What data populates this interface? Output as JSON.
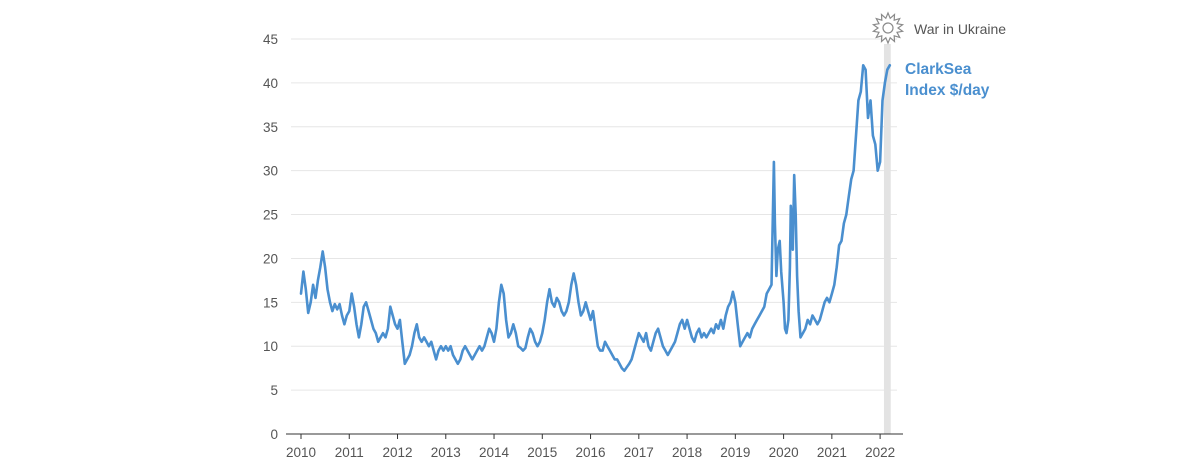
{
  "chart_data": {
    "type": "line",
    "title": "",
    "xlabel": "",
    "ylabel": "",
    "ylim": [
      0,
      45
    ],
    "yticks": [
      0,
      5,
      10,
      15,
      20,
      25,
      30,
      35,
      40,
      45
    ],
    "xlim": [
      2010,
      2022.35
    ],
    "xticks": [
      "2010",
      "2011",
      "2012",
      "2013",
      "2014",
      "2015",
      "2016",
      "2017",
      "2018",
      "2019",
      "2020",
      "2021",
      "2022"
    ],
    "grid": true,
    "series": [
      {
        "name": "ClarkSea Index $/day",
        "label_lines": [
          "ClarkSea",
          "Index $/day"
        ],
        "color": "#4a8fcf",
        "points": [
          [
            2010.0,
            16.0
          ],
          [
            2010.05,
            18.5
          ],
          [
            2010.1,
            16.5
          ],
          [
            2010.15,
            13.8
          ],
          [
            2010.2,
            15.0
          ],
          [
            2010.25,
            17.0
          ],
          [
            2010.3,
            15.5
          ],
          [
            2010.35,
            17.5
          ],
          [
            2010.4,
            19.0
          ],
          [
            2010.45,
            20.8
          ],
          [
            2010.5,
            19.0
          ],
          [
            2010.55,
            16.5
          ],
          [
            2010.6,
            15.0
          ],
          [
            2010.65,
            14.0
          ],
          [
            2010.7,
            14.8
          ],
          [
            2010.75,
            14.2
          ],
          [
            2010.8,
            14.8
          ],
          [
            2010.85,
            13.5
          ],
          [
            2010.9,
            12.5
          ],
          [
            2010.95,
            13.5
          ],
          [
            2011.0,
            14.0
          ],
          [
            2011.05,
            16.0
          ],
          [
            2011.1,
            14.5
          ],
          [
            2011.15,
            12.5
          ],
          [
            2011.2,
            11.0
          ],
          [
            2011.25,
            12.5
          ],
          [
            2011.3,
            14.5
          ],
          [
            2011.35,
            15.0
          ],
          [
            2011.4,
            14.0
          ],
          [
            2011.45,
            13.0
          ],
          [
            2011.5,
            12.0
          ],
          [
            2011.55,
            11.5
          ],
          [
            2011.6,
            10.5
          ],
          [
            2011.65,
            11.0
          ],
          [
            2011.7,
            11.5
          ],
          [
            2011.75,
            11.0
          ],
          [
            2011.8,
            12.0
          ],
          [
            2011.85,
            14.5
          ],
          [
            2011.9,
            13.5
          ],
          [
            2011.95,
            12.5
          ],
          [
            2012.0,
            12.0
          ],
          [
            2012.05,
            13.0
          ],
          [
            2012.1,
            10.5
          ],
          [
            2012.15,
            8.0
          ],
          [
            2012.2,
            8.5
          ],
          [
            2012.25,
            9.0
          ],
          [
            2012.3,
            10.0
          ],
          [
            2012.35,
            11.5
          ],
          [
            2012.4,
            12.5
          ],
          [
            2012.45,
            11.0
          ],
          [
            2012.5,
            10.5
          ],
          [
            2012.55,
            11.0
          ],
          [
            2012.6,
            10.5
          ],
          [
            2012.65,
            10.0
          ],
          [
            2012.7,
            10.5
          ],
          [
            2012.75,
            9.5
          ],
          [
            2012.8,
            8.5
          ],
          [
            2012.85,
            9.5
          ],
          [
            2012.9,
            10.0
          ],
          [
            2012.95,
            9.5
          ],
          [
            2013.0,
            10.0
          ],
          [
            2013.05,
            9.5
          ],
          [
            2013.1,
            10.0
          ],
          [
            2013.15,
            9.0
          ],
          [
            2013.2,
            8.5
          ],
          [
            2013.25,
            8.0
          ],
          [
            2013.3,
            8.5
          ],
          [
            2013.35,
            9.5
          ],
          [
            2013.4,
            10.0
          ],
          [
            2013.45,
            9.5
          ],
          [
            2013.5,
            9.0
          ],
          [
            2013.55,
            8.5
          ],
          [
            2013.6,
            9.0
          ],
          [
            2013.65,
            9.5
          ],
          [
            2013.7,
            10.0
          ],
          [
            2013.75,
            9.5
          ],
          [
            2013.8,
            10.0
          ],
          [
            2013.85,
            11.0
          ],
          [
            2013.9,
            12.0
          ],
          [
            2013.95,
            11.5
          ],
          [
            2014.0,
            10.5
          ],
          [
            2014.05,
            12.0
          ],
          [
            2014.1,
            15.0
          ],
          [
            2014.15,
            17.0
          ],
          [
            2014.2,
            16.0
          ],
          [
            2014.25,
            13.0
          ],
          [
            2014.3,
            11.0
          ],
          [
            2014.35,
            11.5
          ],
          [
            2014.4,
            12.5
          ],
          [
            2014.45,
            11.5
          ],
          [
            2014.5,
            10.0
          ],
          [
            2014.55,
            9.8
          ],
          [
            2014.6,
            9.5
          ],
          [
            2014.65,
            9.8
          ],
          [
            2014.7,
            11.0
          ],
          [
            2014.75,
            12.0
          ],
          [
            2014.8,
            11.5
          ],
          [
            2014.85,
            10.5
          ],
          [
            2014.9,
            10.0
          ],
          [
            2014.95,
            10.5
          ],
          [
            2015.0,
            11.5
          ],
          [
            2015.05,
            13.0
          ],
          [
            2015.1,
            15.0
          ],
          [
            2015.15,
            16.5
          ],
          [
            2015.2,
            15.0
          ],
          [
            2015.25,
            14.5
          ],
          [
            2015.3,
            15.5
          ],
          [
            2015.35,
            15.0
          ],
          [
            2015.4,
            14.0
          ],
          [
            2015.45,
            13.5
          ],
          [
            2015.5,
            14.0
          ],
          [
            2015.55,
            15.0
          ],
          [
            2015.6,
            17.0
          ],
          [
            2015.65,
            18.3
          ],
          [
            2015.7,
            17.0
          ],
          [
            2015.75,
            15.0
          ],
          [
            2015.8,
            13.5
          ],
          [
            2015.85,
            14.0
          ],
          [
            2015.9,
            15.0
          ],
          [
            2015.95,
            14.0
          ],
          [
            2016.0,
            13.0
          ],
          [
            2016.05,
            14.0
          ],
          [
            2016.1,
            12.0
          ],
          [
            2016.15,
            10.0
          ],
          [
            2016.2,
            9.5
          ],
          [
            2016.25,
            9.5
          ],
          [
            2016.3,
            10.5
          ],
          [
            2016.35,
            10.0
          ],
          [
            2016.4,
            9.5
          ],
          [
            2016.45,
            9.0
          ],
          [
            2016.5,
            8.5
          ],
          [
            2016.55,
            8.5
          ],
          [
            2016.6,
            8.0
          ],
          [
            2016.65,
            7.5
          ],
          [
            2016.7,
            7.2
          ],
          [
            2016.75,
            7.6
          ],
          [
            2016.8,
            8.0
          ],
          [
            2016.85,
            8.5
          ],
          [
            2016.9,
            9.5
          ],
          [
            2016.95,
            10.5
          ],
          [
            2017.0,
            11.5
          ],
          [
            2017.05,
            11.0
          ],
          [
            2017.1,
            10.5
          ],
          [
            2017.15,
            11.5
          ],
          [
            2017.2,
            10.0
          ],
          [
            2017.25,
            9.5
          ],
          [
            2017.3,
            10.5
          ],
          [
            2017.35,
            11.5
          ],
          [
            2017.4,
            12.0
          ],
          [
            2017.45,
            11.0
          ],
          [
            2017.5,
            10.0
          ],
          [
            2017.55,
            9.5
          ],
          [
            2017.6,
            9.0
          ],
          [
            2017.65,
            9.5
          ],
          [
            2017.7,
            10.0
          ],
          [
            2017.75,
            10.5
          ],
          [
            2017.8,
            11.5
          ],
          [
            2017.85,
            12.5
          ],
          [
            2017.9,
            13.0
          ],
          [
            2017.95,
            12.0
          ],
          [
            2018.0,
            13.0
          ],
          [
            2018.05,
            12.0
          ],
          [
            2018.1,
            11.0
          ],
          [
            2018.15,
            10.5
          ],
          [
            2018.2,
            11.5
          ],
          [
            2018.25,
            12.0
          ],
          [
            2018.3,
            11.0
          ],
          [
            2018.35,
            11.5
          ],
          [
            2018.4,
            11.0
          ],
          [
            2018.45,
            11.5
          ],
          [
            2018.5,
            12.0
          ],
          [
            2018.55,
            11.5
          ],
          [
            2018.6,
            12.5
          ],
          [
            2018.65,
            12.0
          ],
          [
            2018.7,
            13.0
          ],
          [
            2018.75,
            12.0
          ],
          [
            2018.8,
            13.5
          ],
          [
            2018.85,
            14.5
          ],
          [
            2018.9,
            15.0
          ],
          [
            2018.95,
            16.2
          ],
          [
            2019.0,
            15.0
          ],
          [
            2019.05,
            12.5
          ],
          [
            2019.1,
            10.0
          ],
          [
            2019.15,
            10.5
          ],
          [
            2019.2,
            11.0
          ],
          [
            2019.25,
            11.5
          ],
          [
            2019.3,
            11.0
          ],
          [
            2019.35,
            12.0
          ],
          [
            2019.4,
            12.5
          ],
          [
            2019.45,
            13.0
          ],
          [
            2019.5,
            13.5
          ],
          [
            2019.55,
            14.0
          ],
          [
            2019.6,
            14.5
          ],
          [
            2019.65,
            16.0
          ],
          [
            2019.7,
            16.5
          ],
          [
            2019.75,
            17.0
          ],
          [
            2019.8,
            31.0
          ],
          [
            2019.82,
            24.0
          ],
          [
            2019.85,
            18.0
          ],
          [
            2019.88,
            21.0
          ],
          [
            2019.92,
            22.0
          ],
          [
            2019.95,
            18.5
          ],
          [
            2020.0,
            15.0
          ],
          [
            2020.03,
            12.0
          ],
          [
            2020.06,
            11.5
          ],
          [
            2020.1,
            13.0
          ],
          [
            2020.13,
            19.0
          ],
          [
            2020.15,
            26.0
          ],
          [
            2020.17,
            24.0
          ],
          [
            2020.19,
            21.0
          ],
          [
            2020.22,
            29.5
          ],
          [
            2020.25,
            25.0
          ],
          [
            2020.28,
            18.0
          ],
          [
            2020.31,
            14.0
          ],
          [
            2020.35,
            11.0
          ],
          [
            2020.4,
            11.5
          ],
          [
            2020.45,
            12.0
          ],
          [
            2020.5,
            13.0
          ],
          [
            2020.55,
            12.5
          ],
          [
            2020.6,
            13.5
          ],
          [
            2020.65,
            13.0
          ],
          [
            2020.7,
            12.5
          ],
          [
            2020.75,
            13.0
          ],
          [
            2020.8,
            14.0
          ],
          [
            2020.85,
            15.0
          ],
          [
            2020.9,
            15.5
          ],
          [
            2020.95,
            15.0
          ],
          [
            2021.0,
            16.0
          ],
          [
            2021.05,
            17.0
          ],
          [
            2021.1,
            19.0
          ],
          [
            2021.15,
            21.5
          ],
          [
            2021.2,
            22.0
          ],
          [
            2021.25,
            24.0
          ],
          [
            2021.3,
            25.0
          ],
          [
            2021.35,
            27.0
          ],
          [
            2021.4,
            29.0
          ],
          [
            2021.45,
            30.0
          ],
          [
            2021.5,
            34.0
          ],
          [
            2021.55,
            38.0
          ],
          [
            2021.6,
            39.0
          ],
          [
            2021.65,
            42.0
          ],
          [
            2021.7,
            41.5
          ],
          [
            2021.75,
            36.0
          ],
          [
            2021.8,
            38.0
          ],
          [
            2021.85,
            34.0
          ],
          [
            2021.9,
            33.0
          ],
          [
            2021.95,
            30.0
          ],
          [
            2022.0,
            31.0
          ],
          [
            2022.05,
            38.0
          ],
          [
            2022.1,
            40.0
          ],
          [
            2022.15,
            41.5
          ],
          [
            2022.2,
            42.0
          ]
        ]
      }
    ],
    "annotations": [
      {
        "text": "War in Ukraine",
        "icon": "explosion-icon",
        "x_start": 2022.08,
        "x_end": 2022.22
      }
    ]
  }
}
